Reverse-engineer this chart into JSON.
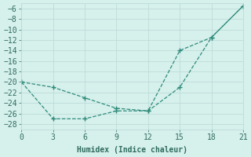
{
  "xlabel": "Humidex (Indice chaleur)",
  "x_ticks": [
    0,
    3,
    6,
    9,
    12,
    15,
    18,
    21
  ],
  "ylim": [
    -29,
    -5
  ],
  "xlim": [
    0,
    21
  ],
  "y_ticks": [
    -6,
    -8,
    -10,
    -12,
    -14,
    -16,
    -18,
    -20,
    -22,
    -24,
    -26,
    -28
  ],
  "line1_x": [
    0,
    3,
    6,
    9,
    12,
    15,
    18,
    21
  ],
  "line1_y": [
    -20,
    -21,
    -23,
    -25,
    -25.5,
    -21,
    -11.5,
    -5.5
  ],
  "line2_x": [
    0,
    3,
    6,
    9,
    12,
    15,
    18,
    21
  ],
  "line2_y": [
    -20,
    -27,
    -27,
    -25.5,
    -25.5,
    -14,
    -11.5,
    -5.5
  ],
  "line_color": "#2e8b7a",
  "bg_color": "#d6f0ec",
  "grid_color": "#b8d8d4",
  "font_color": "#2e6b5e",
  "font_family": "monospace",
  "marker_style": "+",
  "marker_size": 5,
  "linewidth": 0.9,
  "linestyle": "--"
}
